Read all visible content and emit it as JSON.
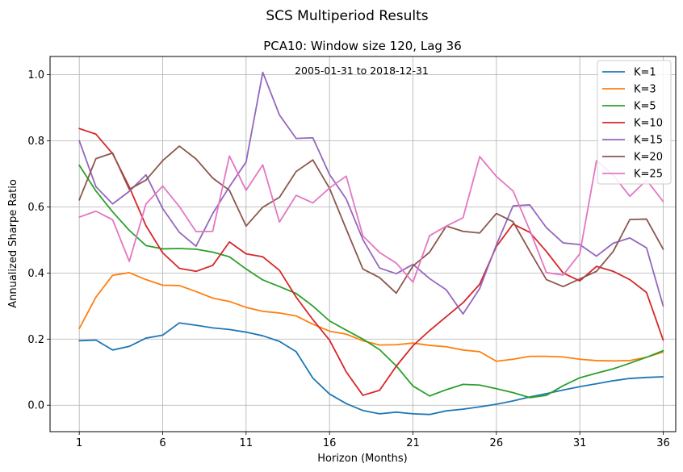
{
  "figure": {
    "suptitle": "SCS Multiperiod Results"
  },
  "chart_data": {
    "type": "line",
    "title": "PCA10: Window size 120, Lag 36",
    "annotation": "2005-01-31 to 2018-12-31",
    "xlabel": "Horizon (Months)",
    "ylabel": "Annualized Sharpe Ratio",
    "xlim": [
      -0.75,
      36.75
    ],
    "ylim": [
      -0.08,
      1.055
    ],
    "xticks": [
      1,
      6,
      11,
      16,
      21,
      26,
      31,
      36
    ],
    "yticks": [
      0.0,
      0.2,
      0.4,
      0.6,
      0.8,
      1.0
    ],
    "ytick_labels": [
      "0.0",
      "0.2",
      "0.4",
      "0.6",
      "0.8",
      "1.0"
    ],
    "grid": true,
    "legend_position": "top-right",
    "x": [
      1,
      2,
      3,
      4,
      5,
      6,
      7,
      8,
      9,
      10,
      11,
      12,
      13,
      14,
      15,
      16,
      17,
      18,
      19,
      20,
      21,
      22,
      23,
      24,
      25,
      26,
      27,
      28,
      29,
      30,
      31,
      32,
      33,
      34,
      35,
      36
    ],
    "series": [
      {
        "name": "K=1",
        "color": "#1f77b4",
        "values": [
          0.195,
          0.197,
          0.167,
          0.178,
          0.203,
          0.212,
          0.249,
          0.242,
          0.234,
          0.229,
          0.221,
          0.21,
          0.193,
          0.162,
          0.082,
          0.034,
          0.005,
          -0.016,
          -0.026,
          -0.021,
          -0.026,
          -0.028,
          -0.017,
          -0.012,
          -0.005,
          0.003,
          0.013,
          0.025,
          0.035,
          0.046,
          0.056,
          0.065,
          0.074,
          0.081,
          0.084,
          0.086
        ]
      },
      {
        "name": "K=3",
        "color": "#ff7f0e",
        "values": [
          0.232,
          0.327,
          0.393,
          0.401,
          0.38,
          0.363,
          0.362,
          0.344,
          0.324,
          0.314,
          0.296,
          0.284,
          0.279,
          0.27,
          0.245,
          0.224,
          0.215,
          0.195,
          0.182,
          0.183,
          0.188,
          0.181,
          0.177,
          0.167,
          0.162,
          0.133,
          0.139,
          0.148,
          0.148,
          0.146,
          0.139,
          0.135,
          0.134,
          0.135,
          0.145,
          0.161
        ]
      },
      {
        "name": "K=5",
        "color": "#2ca02c",
        "values": [
          0.726,
          0.648,
          0.585,
          0.529,
          0.483,
          0.473,
          0.474,
          0.472,
          0.463,
          0.449,
          0.412,
          0.379,
          0.359,
          0.338,
          0.3,
          0.255,
          0.227,
          0.2,
          0.168,
          0.119,
          0.058,
          0.028,
          0.047,
          0.063,
          0.061,
          0.05,
          0.038,
          0.023,
          0.03,
          0.059,
          0.083,
          0.097,
          0.11,
          0.127,
          0.145,
          0.165
        ]
      },
      {
        "name": "K=10",
        "color": "#d62728",
        "values": [
          0.837,
          0.82,
          0.761,
          0.66,
          0.543,
          0.461,
          0.414,
          0.405,
          0.423,
          0.494,
          0.458,
          0.449,
          0.408,
          0.327,
          0.259,
          0.197,
          0.101,
          0.03,
          0.045,
          0.118,
          0.18,
          0.226,
          0.268,
          0.31,
          0.366,
          0.48,
          0.548,
          0.523,
          0.465,
          0.4,
          0.376,
          0.42,
          0.405,
          0.38,
          0.341,
          0.197
        ]
      },
      {
        "name": "K=15",
        "color": "#9467bd",
        "values": [
          0.8,
          0.661,
          0.609,
          0.647,
          0.697,
          0.595,
          0.523,
          0.481,
          0.58,
          0.661,
          0.736,
          1.007,
          0.878,
          0.807,
          0.809,
          0.698,
          0.624,
          0.501,
          0.415,
          0.398,
          0.426,
          0.383,
          0.349,
          0.276,
          0.353,
          0.485,
          0.603,
          0.606,
          0.537,
          0.491,
          0.486,
          0.451,
          0.49,
          0.506,
          0.476,
          0.3
        ]
      },
      {
        "name": "K=20",
        "color": "#8c564b",
        "values": [
          0.621,
          0.746,
          0.763,
          0.653,
          0.681,
          0.74,
          0.784,
          0.745,
          0.687,
          0.65,
          0.542,
          0.599,
          0.629,
          0.707,
          0.742,
          0.656,
          0.533,
          0.412,
          0.386,
          0.339,
          0.421,
          0.463,
          0.542,
          0.526,
          0.521,
          0.58,
          0.555,
          0.466,
          0.38,
          0.359,
          0.382,
          0.405,
          0.465,
          0.562,
          0.563,
          0.472
        ]
      },
      {
        "name": "K=25",
        "color": "#e377c2",
        "values": [
          0.569,
          0.587,
          0.561,
          0.435,
          0.609,
          0.663,
          0.601,
          0.525,
          0.526,
          0.754,
          0.65,
          0.727,
          0.554,
          0.635,
          0.612,
          0.657,
          0.693,
          0.512,
          0.462,
          0.43,
          0.372,
          0.513,
          0.542,
          0.567,
          0.752,
          0.692,
          0.648,
          0.53,
          0.401,
          0.394,
          0.458,
          0.74,
          0.696,
          0.632,
          0.681,
          0.616
        ]
      }
    ]
  }
}
